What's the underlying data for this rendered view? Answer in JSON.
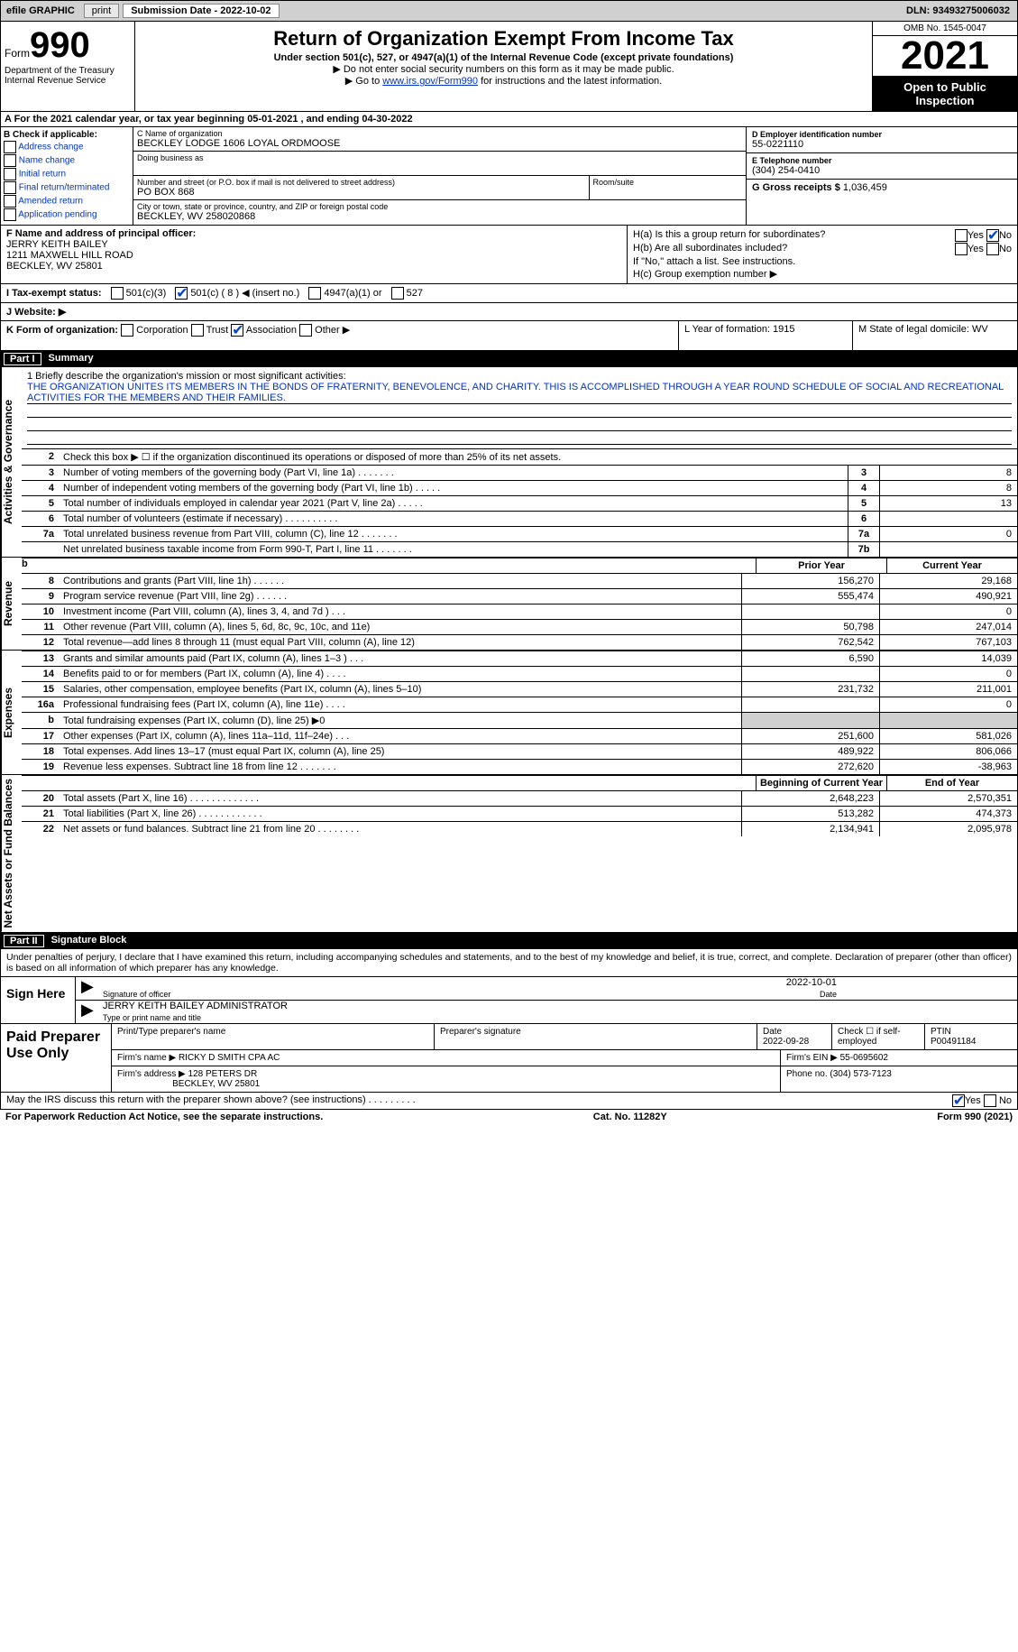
{
  "topbar": {
    "efile": "efile GRAPHIC",
    "print": "print",
    "subdate_label": "Submission Date - 2022-10-02",
    "dln": "DLN: 93493275006032"
  },
  "header": {
    "form_prefix": "Form",
    "form_num": "990",
    "title": "Return of Organization Exempt From Income Tax",
    "sub1": "Under section 501(c), 527, or 4947(a)(1) of the Internal Revenue Code (except private foundations)",
    "sub2": "▶ Do not enter social security numbers on this form as it may be made public.",
    "sub3_pre": "▶ Go to ",
    "sub3_link": "www.irs.gov/Form990",
    "sub3_post": " for instructions and the latest information.",
    "dept": "Department of the Treasury Internal Revenue Service",
    "omb": "OMB No. 1545-0047",
    "year": "2021",
    "opb": "Open to Public Inspection"
  },
  "rowA": "A For the 2021 calendar year, or tax year beginning 05-01-2021    , and ending 04-30-2022",
  "colB": {
    "head": "B Check if applicable:",
    "o1": "Address change",
    "o2": "Name change",
    "o3": "Initial return",
    "o4": "Final return/terminated",
    "o5": "Amended return",
    "o6": "Application pending"
  },
  "boxC": {
    "name_label": "C Name of organization",
    "name": "BECKLEY LODGE 1606 LOYAL ORDMOOSE",
    "dba_label": "Doing business as",
    "street_label": "Number and street (or P.O. box if mail is not delivered to street address)",
    "room_label": "Room/suite",
    "street": "PO BOX 868",
    "city_label": "City or town, state or province, country, and ZIP or foreign postal code",
    "city": "BECKLEY, WV  258020868"
  },
  "boxD": {
    "label": "D Employer identification number",
    "val": "55-0221110",
    "elabel": "E Telephone number",
    "eval": "(304) 254-0410",
    "glabel": "G Gross receipts $",
    "gval": "1,036,459"
  },
  "boxF": {
    "label": "F  Name and address of principal officer:",
    "l1": "JERRY KEITH BAILEY",
    "l2": "1211 MAXWELL HILL ROAD",
    "l3": "BECKLEY, WV  25801"
  },
  "boxH": {
    "a": "H(a)  Is this a group return for subordinates?",
    "b": "H(b)  Are all subordinates included?",
    "bnote": "If \"No,\" attach a list. See instructions.",
    "c": "H(c)  Group exemption number ▶",
    "yes": "Yes",
    "no": "No"
  },
  "rowI": {
    "label": "I    Tax-exempt status:",
    "o1": "501(c)(3)",
    "o2": "501(c) ( 8 ) ◀ (insert no.)",
    "o3": "4947(a)(1) or",
    "o4": "527"
  },
  "rowJ": "J   Website: ▶",
  "rowK": {
    "k": "K Form of organization:",
    "o1": "Corporation",
    "o2": "Trust",
    "o3": "Association",
    "o4": "Other ▶",
    "l": "L Year of formation: 1915",
    "m": "M State of legal domicile: WV"
  },
  "part1_label": "Part I",
  "part1_title": "Summary",
  "mission_label": "1  Briefly describe the organization's mission or most significant activities:",
  "mission_text": "THE ORGANIZATION UNITES ITS MEMBERS IN THE BONDS OF FRATERNITY, BENEVOLENCE, AND CHARITY. THIS IS ACCOMPLISHED THROUGH A YEAR ROUND SCHEDULE OF SOCIAL AND RECREATIONAL ACTIVITIES FOR THE MEMBERS AND THEIR FAMILIES.",
  "line2": "Check this box ▶ ☐  if the organization discontinued its operations or disposed of more than 25% of its net assets.",
  "vlabels": {
    "ag": "Activities & Governance",
    "rev": "Revenue",
    "exp": "Expenses",
    "na": "Net Assets or Fund Balances"
  },
  "col_headers": {
    "prior": "Prior Year",
    "current": "Current Year",
    "begin": "Beginning of Current Year",
    "end": "End of Year"
  },
  "lines": [
    {
      "n": "3",
      "d": "Number of voting members of the governing body (Part VI, line 1a)  .  .  .  .  .  .  .",
      "bn": "3",
      "v": "8"
    },
    {
      "n": "4",
      "d": "Number of independent voting members of the governing body (Part VI, line 1b)   .   .   .   .   .",
      "bn": "4",
      "v": "8"
    },
    {
      "n": "5",
      "d": "Total number of individuals employed in calendar year 2021 (Part V, line 2a)   .   .   .   .   .",
      "bn": "5",
      "v": "13"
    },
    {
      "n": "6",
      "d": "Total number of volunteers (estimate if necessary)    .    .    .    .    .    .    .    .    .    .",
      "bn": "6",
      "v": ""
    },
    {
      "n": "7a",
      "d": "Total unrelated business revenue from Part VIII, column (C), line 12   .   .   .   .   .   .   .",
      "bn": "7a",
      "v": "0"
    },
    {
      "n": "",
      "d": "Net unrelated business taxable income from Form 990-T, Part I, line 11  .  .  .  .  .  .  .",
      "bn": "7b",
      "v": ""
    }
  ],
  "rev": [
    {
      "n": "8",
      "d": "Contributions and grants (Part VIII, line 1h)    .    .    .    .    .    .",
      "p": "156,270",
      "c": "29,168"
    },
    {
      "n": "9",
      "d": "Program service revenue (Part VIII, line 2g)    .    .    .    .    .    .",
      "p": "555,474",
      "c": "490,921"
    },
    {
      "n": "10",
      "d": "Investment income (Part VIII, column (A), lines 3, 4, and 7d )   .   .   .",
      "p": "",
      "c": "0"
    },
    {
      "n": "11",
      "d": "Other revenue (Part VIII, column (A), lines 5, 6d, 8c, 9c, 10c, and 11e)",
      "p": "50,798",
      "c": "247,014"
    },
    {
      "n": "12",
      "d": "Total revenue—add lines 8 through 11 (must equal Part VIII, column (A), line 12)",
      "p": "762,542",
      "c": "767,103"
    }
  ],
  "exp": [
    {
      "n": "13",
      "d": "Grants and similar amounts paid (Part IX, column (A), lines 1–3 )  .  .  .",
      "p": "6,590",
      "c": "14,039"
    },
    {
      "n": "14",
      "d": "Benefits paid to or for members (Part IX, column (A), line 4)  .  .  .  .",
      "p": "",
      "c": "0"
    },
    {
      "n": "15",
      "d": "Salaries, other compensation, employee benefits (Part IX, column (A), lines 5–10)",
      "p": "231,732",
      "c": "211,001"
    },
    {
      "n": "16a",
      "d": "Professional fundraising fees (Part IX, column (A), line 11e)   .   .   .   .",
      "p": "",
      "c": "0"
    },
    {
      "n": "b",
      "d": "Total fundraising expenses (Part IX, column (D), line 25) ▶0",
      "p": "shade",
      "c": "shade"
    },
    {
      "n": "17",
      "d": "Other expenses (Part IX, column (A), lines 11a–11d, 11f–24e)   .   .   .",
      "p": "251,600",
      "c": "581,026"
    },
    {
      "n": "18",
      "d": "Total expenses. Add lines 13–17 (must equal Part IX, column (A), line 25)",
      "p": "489,922",
      "c": "806,066"
    },
    {
      "n": "19",
      "d": "Revenue less expenses. Subtract line 18 from line 12  .  .  .  .  .  .  .",
      "p": "272,620",
      "c": "-38,963"
    }
  ],
  "na": [
    {
      "n": "20",
      "d": "Total assets (Part X, line 16)  .  .  .  .  .  .  .  .  .  .  .  .  .",
      "p": "2,648,223",
      "c": "2,570,351"
    },
    {
      "n": "21",
      "d": "Total liabilities (Part X, line 26)  .  .  .  .  .  .  .  .  .  .  .  .",
      "p": "513,282",
      "c": "474,373"
    },
    {
      "n": "22",
      "d": "Net assets or fund balances. Subtract line 21 from line 20 .  .  .  .  .  .  .  .",
      "p": "2,134,941",
      "c": "2,095,978"
    }
  ],
  "part2_label": "Part II",
  "part2_title": "Signature Block",
  "penalties": "Under penalties of perjury, I declare that I have examined this return, including accompanying schedules and statements, and to the best of my knowledge and belief, it is true, correct, and complete. Declaration of preparer (other than officer) is based on all information of which preparer has any knowledge.",
  "sign": {
    "here": "Sign Here",
    "sig_label": "Signature of officer",
    "date_label": "Date",
    "date_val": "2022-10-01",
    "name": "JERRY KEITH BAILEY  ADMINISTRATOR",
    "name_label": "Type or print name and title"
  },
  "prep": {
    "title": "Paid Preparer Use Only",
    "h1": "Print/Type preparer's name",
    "h2": "Preparer's signature",
    "h3": "Date",
    "h3v": "2022-09-28",
    "h4": "Check ☐ if self-employed",
    "h5": "PTIN",
    "h5v": "P00491184",
    "firm_label": "Firm's name    ▶",
    "firm": "RICKY D SMITH CPA AC",
    "ein_label": "Firm's EIN ▶",
    "ein": "55-0695602",
    "addr_label": "Firm's address ▶",
    "addr1": "128 PETERS DR",
    "addr2": "BECKLEY, WV  25801",
    "phone_label": "Phone no.",
    "phone": "(304) 573-7123"
  },
  "footer": {
    "discuss": "May the IRS discuss this return with the preparer shown above? (see instructions)   .   .   .   .   .   .   .   .   .",
    "yes": "Yes",
    "no": "No",
    "pra": "For Paperwork Reduction Act Notice, see the separate instructions.",
    "cat": "Cat. No. 11282Y",
    "form": "Form 990 (2021)"
  }
}
